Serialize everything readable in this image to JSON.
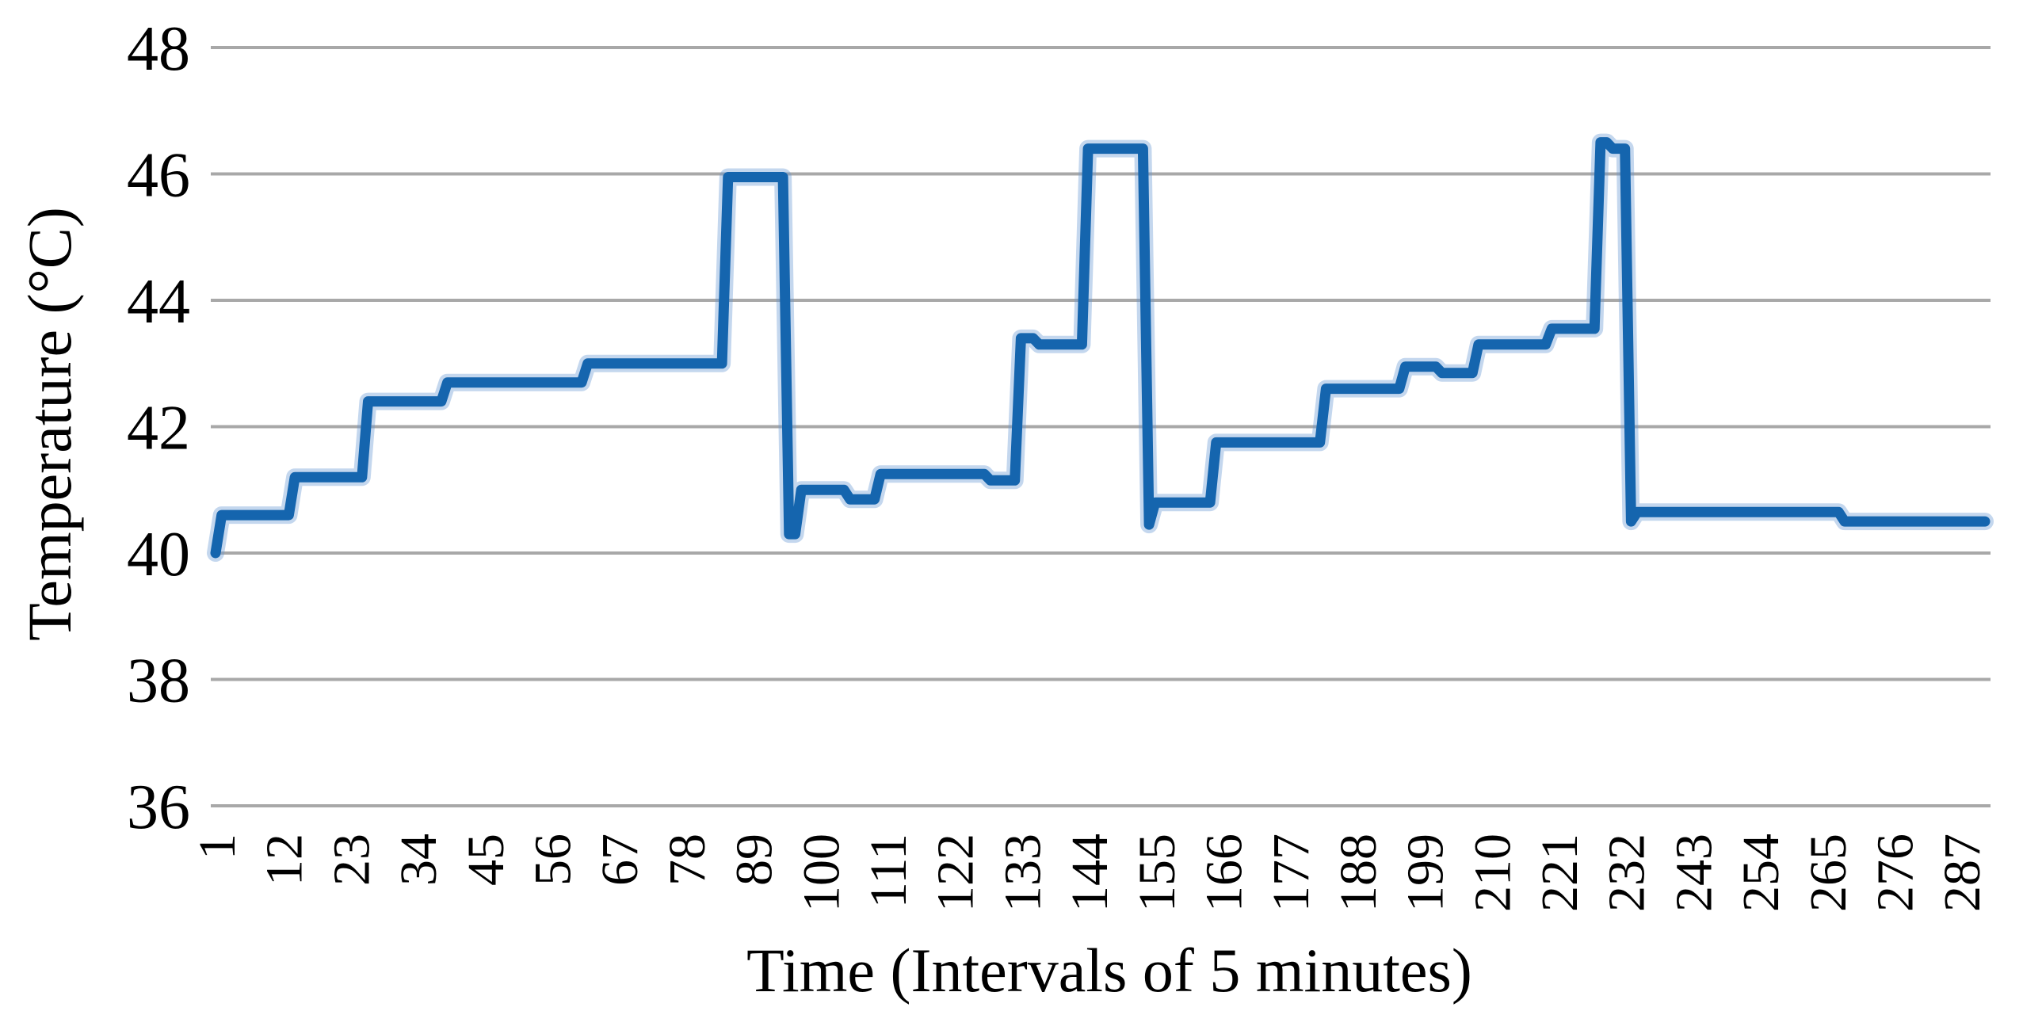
{
  "figure": {
    "background": "#ffffff"
  },
  "chart_data": {
    "type": "line",
    "title": "",
    "xlabel": "Time (Intervals of 5 minutes)",
    "ylabel": "Temperature (°C)",
    "x_axis": {
      "kind": "category-index",
      "n_points": 291,
      "tick_interval": 11,
      "tick_labels": [
        "1",
        "12",
        "23",
        "34",
        "45",
        "56",
        "67",
        "78",
        "89",
        "100",
        "111",
        "122",
        "133",
        "144",
        "155",
        "166",
        "177",
        "188",
        "199",
        "210",
        "221",
        "232",
        "243",
        "254",
        "265",
        "276",
        "287"
      ],
      "tick_rotation_deg": -90
    },
    "y_axis": {
      "ticks": [
        48,
        46,
        44,
        42,
        40,
        38,
        36
      ],
      "min": 36,
      "max": 48,
      "gridlines": true
    },
    "legend": false,
    "series": [
      {
        "name": "Temperature",
        "segments_format": "[from_point, to_point, value_celsius] — consecutive points connected, producing stepped line",
        "segments": [
          [
            1,
            1,
            40.0
          ],
          [
            2,
            13,
            40.6
          ],
          [
            14,
            25,
            41.2
          ],
          [
            26,
            38,
            42.4
          ],
          [
            39,
            61,
            42.7
          ],
          [
            62,
            84,
            43.0
          ],
          [
            85,
            94,
            45.95
          ],
          [
            95,
            96,
            40.3
          ],
          [
            97,
            104,
            41.0
          ],
          [
            105,
            109,
            40.85
          ],
          [
            110,
            127,
            41.25
          ],
          [
            128,
            132,
            41.15
          ],
          [
            133,
            135,
            43.4
          ],
          [
            136,
            143,
            43.3
          ],
          [
            144,
            153,
            46.4
          ],
          [
            154,
            154,
            40.45
          ],
          [
            155,
            164,
            40.8
          ],
          [
            165,
            182,
            41.75
          ],
          [
            183,
            195,
            42.6
          ],
          [
            196,
            201,
            42.95
          ],
          [
            202,
            207,
            42.85
          ],
          [
            208,
            219,
            43.3
          ],
          [
            220,
            227,
            43.55
          ],
          [
            228,
            229,
            46.5
          ],
          [
            230,
            232,
            46.4
          ],
          [
            233,
            233,
            40.5
          ],
          [
            234,
            267,
            40.65
          ],
          [
            268,
            291,
            40.5
          ]
        ]
      }
    ],
    "colors": {
      "line": "#1565ae",
      "line_halo": "rgba(100,150,210,0.38)",
      "gridline": "#a8a8a8",
      "text": "#000000"
    }
  }
}
